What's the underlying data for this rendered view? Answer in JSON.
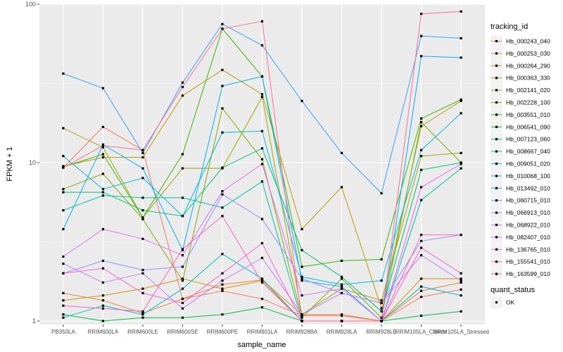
{
  "chart_data": {
    "type": "line",
    "xlabel": "sample_name",
    "ylabel": "FPKM + 1",
    "y_scale": "log10",
    "ylim": [
      0.95,
      100
    ],
    "y_ticks": [
      1,
      10,
      100
    ],
    "y_tick_labels": [
      "1",
      "10",
      "100"
    ],
    "grid": true,
    "legend_position": "right",
    "categories": [
      "PB350LA",
      "RRIM600LA",
      "RRIM600LE",
      "RRIM600SE",
      "RRIM600PE",
      "RRIM901LA",
      "RRIM928BA",
      "RRIM928LA",
      "RRIM928LE",
      "RRIM105LA_Control",
      "RRIM105LA_Stressed"
    ],
    "category_labels": [
      "PB350LA",
      "RRIM600LA",
      "RRIM600LE",
      "RRIM600SE",
      "RRIM600PE",
      "RRIM901LA",
      "RRIM928BA",
      "RRIM928LA",
      "RRIM928LE",
      "RRIM105LA_Control",
      "RRIM105LA_Stressed"
    ],
    "color_legend_title": "tracking_id",
    "shape_legend_title": "quant_status",
    "shape_legend_items": [
      "OK"
    ],
    "series": [
      {
        "name": "Hb_000243_040",
        "color": "#F8766D",
        "values": [
          9.3,
          16.8,
          12.0,
          1.38,
          1.55,
          1.38,
          1.08,
          1.08,
          1.0,
          1.42,
          1.58
        ]
      },
      {
        "name": "Hb_000253_030",
        "color": "#EA8331",
        "values": [
          1.5,
          1.35,
          1.12,
          1.38,
          1.7,
          1.82,
          1.1,
          1.1,
          1.0,
          1.55,
          1.75
        ]
      },
      {
        "name": "Hb_000264_290",
        "color": "#D89000",
        "values": [
          1.35,
          1.45,
          1.6,
          1.85,
          1.6,
          1.8,
          1.0,
          1.0,
          1.0,
          1.85,
          1.85
        ]
      },
      {
        "name": "Hb_000363_330",
        "color": "#C09B00",
        "values": [
          9.5,
          10.8,
          10.8,
          26.5,
          38.5,
          27.0,
          3.8,
          7.0,
          1.2,
          17.0,
          24.5
        ]
      },
      {
        "name": "Hb_002141_020",
        "color": "#A3A500",
        "values": [
          16.5,
          12.5,
          4.5,
          9.2,
          9.2,
          26.0,
          1.1,
          1.6,
          1.35,
          11.0,
          11.5
        ]
      },
      {
        "name": "Hb_002228_100",
        "color": "#7CAE00",
        "values": [
          6.8,
          8.5,
          4.4,
          1.8,
          22.0,
          10.5,
          1.05,
          1.85,
          1.05,
          18.0,
          10.0
        ]
      },
      {
        "name": "Hb_003551_010",
        "color": "#39B600",
        "values": [
          9.4,
          11.3,
          4.5,
          11.3,
          70.0,
          35.0,
          2.2,
          2.4,
          2.45,
          19.0,
          25.0
        ]
      },
      {
        "name": "Hb_006541_090",
        "color": "#00BB4E",
        "values": [
          1.1,
          1.0,
          1.05,
          1.05,
          1.1,
          1.22,
          1.0,
          1.0,
          1.0,
          1.08,
          1.15
        ]
      },
      {
        "name": "Hb_007123_060",
        "color": "#00BF7D",
        "values": [
          6.5,
          6.5,
          5.0,
          4.6,
          9.3,
          12.3,
          2.8,
          1.9,
          1.15,
          9.0,
          10.0
        ]
      },
      {
        "name": "Hb_008667_040",
        "color": "#00C1A3",
        "values": [
          5.0,
          6.2,
          6.0,
          6.0,
          5.2,
          7.6,
          1.0,
          1.0,
          1.0,
          5.8,
          9.2
        ]
      },
      {
        "name": "Hb_009051_020",
        "color": "#00BFC4",
        "values": [
          1.05,
          1.25,
          1.1,
          1.6,
          2.65,
          1.85,
          1.0,
          1.0,
          1.0,
          1.65,
          1.45
        ]
      },
      {
        "name": "Hb_010068_100",
        "color": "#00BAE0",
        "values": [
          11.0,
          6.8,
          8.0,
          4.6,
          15.5,
          15.8,
          1.9,
          1.7,
          1.8,
          12.0,
          20.5
        ]
      },
      {
        "name": "Hb_013492_010",
        "color": "#00B0F6",
        "values": [
          3.8,
          13.0,
          9.2,
          2.8,
          30.5,
          35.0,
          1.8,
          1.65,
          1.0,
          47.0,
          46.0
        ]
      },
      {
        "name": "Hb_060715_010",
        "color": "#35A2FF",
        "values": [
          36.5,
          29.5,
          11.5,
          32.0,
          75.0,
          55.0,
          24.5,
          11.5,
          6.4,
          63.0,
          61.0
        ]
      },
      {
        "name": "Hb_066913_010",
        "color": "#9590FF",
        "values": [
          2.0,
          2.4,
          2.1,
          2.2,
          6.3,
          4.4,
          1.85,
          1.5,
          1.3,
          3.2,
          3.5
        ]
      },
      {
        "name": "Hb_068922_010",
        "color": "#C77CFF",
        "values": [
          2.3,
          1.75,
          2.0,
          1.2,
          1.8,
          2.5,
          1.1,
          1.5,
          1.3,
          2.6,
          1.8
        ]
      },
      {
        "name": "Hb_082407_010",
        "color": "#E76BF3",
        "values": [
          2.55,
          3.8,
          3.3,
          2.6,
          6.6,
          9.8,
          1.45,
          1.6,
          1.0,
          7.0,
          9.8
        ]
      },
      {
        "name": "Hb_136765_010",
        "color": "#FA62DB",
        "values": [
          2.0,
          2.15,
          1.5,
          1.3,
          2.0,
          3.1,
          1.0,
          1.0,
          1.0,
          2.9,
          2.0
        ]
      },
      {
        "name": "Hb_155541_010",
        "color": "#FF62BC",
        "values": [
          1.25,
          1.2,
          1.15,
          2.85,
          4.6,
          1.75,
          1.0,
          1.0,
          1.0,
          3.5,
          3.5
        ]
      },
      {
        "name": "Hb_163599_010",
        "color": "#FF6C91",
        "values": [
          9.3,
          12.8,
          12.0,
          30.0,
          70.0,
          78.0,
          1.0,
          1.0,
          1.0,
          87.0,
          90.0
        ]
      }
    ]
  }
}
